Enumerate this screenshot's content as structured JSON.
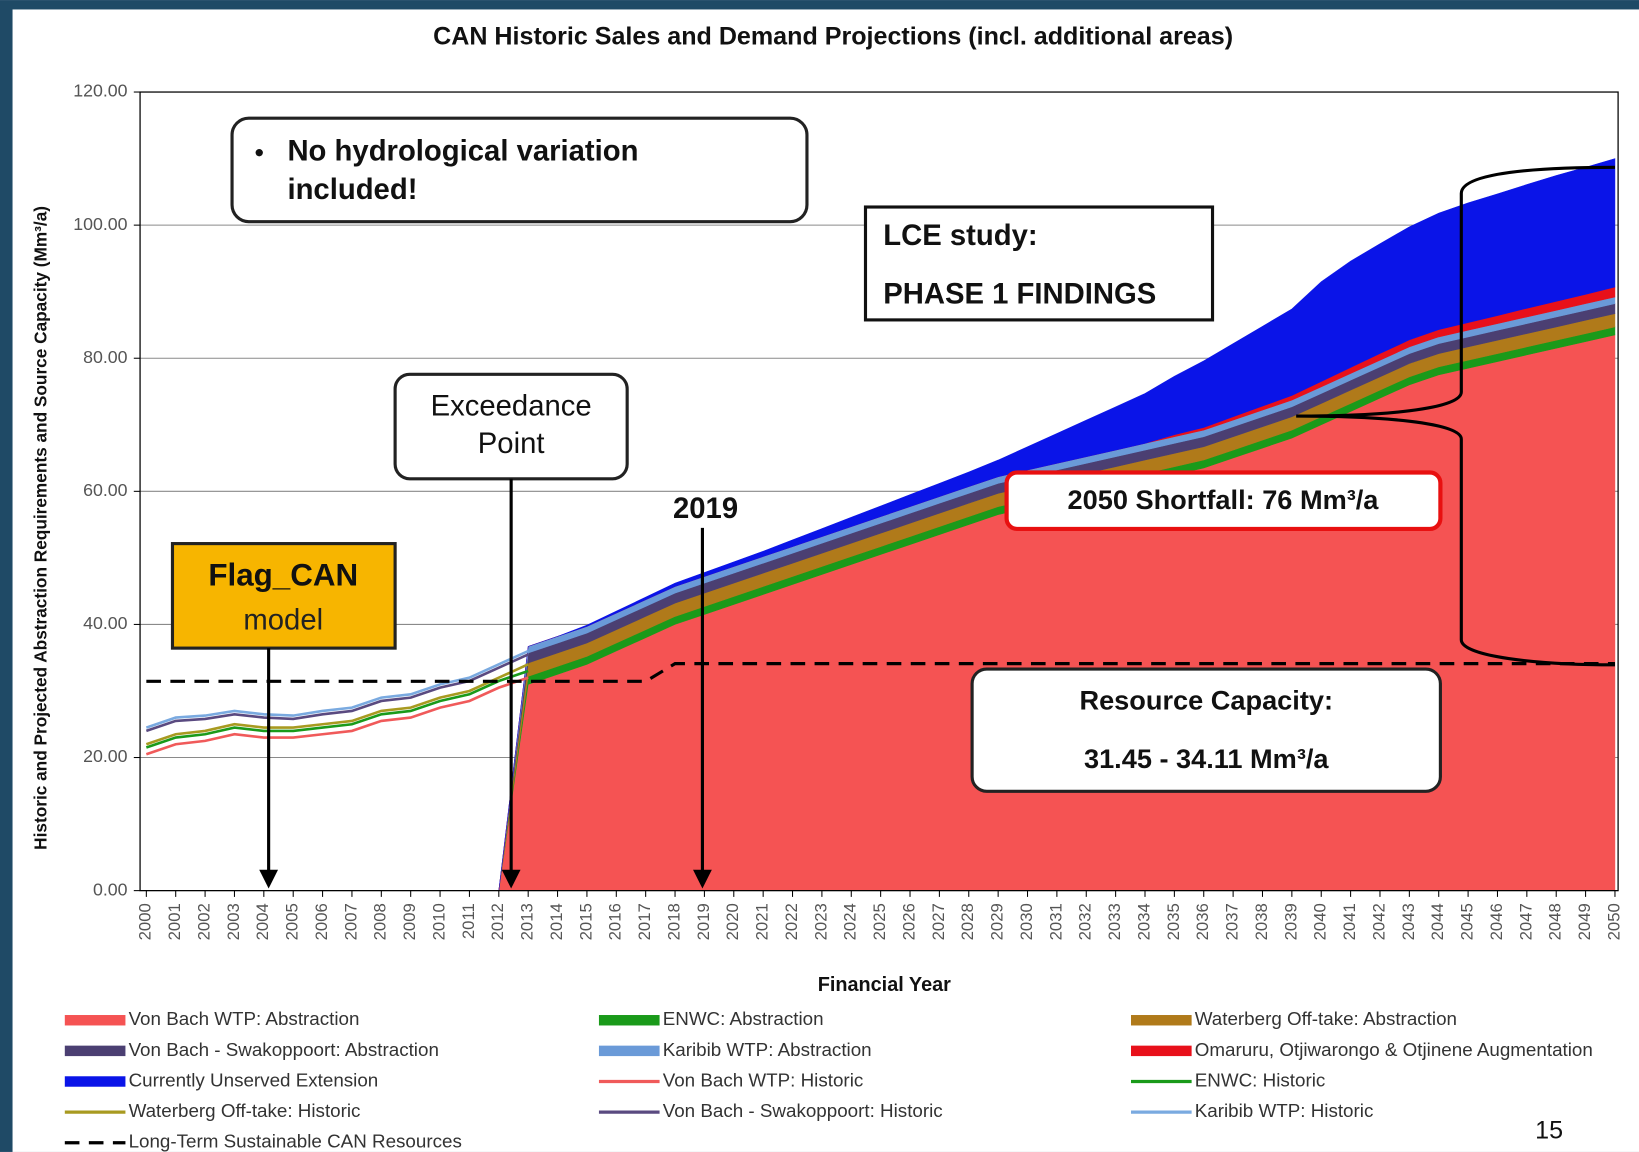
{
  "chart_data": {
    "type": "stacked_area",
    "title": "CAN Historic Sales and Demand Projections (incl. additional areas)",
    "x_label": "Financial Year",
    "y_label": "Historic and Projected Abstraction Requirements and Source Capacity (Mm³/a)",
    "x": [
      2000,
      2001,
      2002,
      2003,
      2004,
      2005,
      2006,
      2007,
      2008,
      2009,
      2010,
      2011,
      2012,
      2013,
      2014,
      2015,
      2016,
      2017,
      2018,
      2019,
      2020,
      2021,
      2022,
      2023,
      2024,
      2025,
      2026,
      2027,
      2028,
      2029,
      2030,
      2031,
      2032,
      2033,
      2034,
      2035,
      2036,
      2037,
      2038,
      2039,
      2040,
      2041,
      2042,
      2043,
      2044,
      2045,
      2046,
      2047,
      2048,
      2049,
      2050
    ],
    "xlim": [
      2000,
      2050
    ],
    "xticks": [
      2000,
      2001,
      2002,
      2003,
      2004,
      2005,
      2006,
      2007,
      2008,
      2009,
      2010,
      2011,
      2012,
      2013,
      2014,
      2015,
      2016,
      2017,
      2018,
      2019,
      2020,
      2021,
      2022,
      2023,
      2024,
      2025,
      2026,
      2027,
      2028,
      2029,
      2030,
      2031,
      2032,
      2033,
      2034,
      2035,
      2036,
      2037,
      2038,
      2039,
      2040,
      2041,
      2042,
      2043,
      2044,
      2045,
      2046,
      2047,
      2048,
      2049,
      2050
    ],
    "ylim": [
      0,
      120
    ],
    "yticks": [
      {
        "value": 0,
        "label": "0.00"
      },
      {
        "value": 20,
        "label": "20.00"
      },
      {
        "value": 40,
        "label": "40.00"
      },
      {
        "value": 60,
        "label": "60.00"
      },
      {
        "value": 80,
        "label": "80.00"
      },
      {
        "value": 100,
        "label": "100.00"
      },
      {
        "value": 120,
        "label": "120.00"
      }
    ],
    "grid": true,
    "series": [
      {
        "name": "Von Bach WTP: Abstraction",
        "kind": "area",
        "color": "#f55353",
        "values": [
          null,
          null,
          null,
          null,
          null,
          null,
          null,
          null,
          null,
          null,
          null,
          null,
          0,
          31,
          32.5,
          34,
          36,
          38,
          40,
          41.5,
          43,
          44.5,
          46,
          47.5,
          49,
          50.5,
          52,
          53.5,
          55,
          56.5,
          57.5,
          58.5,
          59.5,
          60.5,
          61.5,
          62.5,
          63.5,
          65,
          66.5,
          68,
          70,
          72,
          74,
          76,
          77.5,
          78.5,
          79.5,
          80.5,
          81.5,
          82.5,
          83.5
        ]
      },
      {
        "name": "ENWC: Abstraction",
        "kind": "area",
        "color": "#1a9a1a",
        "values": [
          null,
          null,
          null,
          null,
          null,
          null,
          null,
          null,
          null,
          null,
          null,
          null,
          0,
          1.2,
          1.2,
          1.2,
          1.2,
          1.2,
          1.2,
          1.2,
          1.2,
          1.2,
          1.2,
          1.2,
          1.2,
          1.2,
          1.2,
          1.2,
          1.2,
          1.2,
          1.2,
          1.2,
          1.2,
          1.2,
          1.2,
          1.2,
          1.2,
          1.2,
          1.2,
          1.2,
          1.2,
          1.2,
          1.2,
          1.2,
          1.2,
          1.2,
          1.2,
          1.2,
          1.2,
          1.2,
          1.2
        ]
      },
      {
        "name": "Waterberg Off-take: Abstraction",
        "kind": "area",
        "color": "#b07a1a",
        "values": [
          null,
          null,
          null,
          null,
          null,
          null,
          null,
          null,
          null,
          null,
          null,
          null,
          0,
          2,
          2,
          2,
          2,
          2,
          2,
          2,
          2,
          2,
          2,
          2,
          2,
          2,
          2,
          2,
          2,
          2,
          2,
          2,
          2,
          2,
          2,
          2,
          2,
          2,
          2,
          2,
          2,
          2,
          2,
          2,
          2,
          2,
          2,
          2,
          2,
          2,
          2
        ]
      },
      {
        "name": "Von Bach - Swakoppoort: Abstraction",
        "kind": "area",
        "color": "#4b3f72",
        "values": [
          null,
          null,
          null,
          null,
          null,
          null,
          null,
          null,
          null,
          null,
          null,
          null,
          0,
          1.5,
          1.5,
          1.5,
          1.5,
          1.5,
          1.5,
          1.5,
          1.5,
          1.5,
          1.5,
          1.5,
          1.5,
          1.5,
          1.5,
          1.5,
          1.5,
          1.5,
          1.5,
          1.5,
          1.5,
          1.5,
          1.5,
          1.5,
          1.5,
          1.5,
          1.5,
          1.5,
          1.5,
          1.5,
          1.5,
          1.5,
          1.5,
          1.5,
          1.5,
          1.5,
          1.5,
          1.5,
          1.5
        ]
      },
      {
        "name": "Karibib WTP: Abstraction",
        "kind": "area",
        "color": "#6a9ad8",
        "values": [
          null,
          null,
          null,
          null,
          null,
          null,
          null,
          null,
          null,
          null,
          null,
          null,
          0,
          1,
          1,
          1,
          1,
          1,
          1,
          1,
          1,
          1,
          1,
          1,
          1,
          1,
          1,
          1,
          1,
          1,
          1,
          1,
          1,
          1,
          1,
          1,
          1,
          1,
          1,
          1,
          1,
          1,
          1,
          1,
          1,
          1,
          1,
          1,
          1,
          1,
          1
        ]
      },
      {
        "name": "Omaruru, Otjiwarongo & Otjinene Augmentation",
        "kind": "area",
        "color": "#e8101a",
        "values": [
          null,
          null,
          null,
          null,
          null,
          null,
          null,
          null,
          null,
          null,
          null,
          null,
          0,
          0,
          0,
          0,
          0,
          0,
          0,
          0,
          0,
          0,
          0,
          0,
          0,
          0,
          0,
          0,
          0,
          0,
          0,
          0,
          0,
          0,
          0,
          0.3,
          0.4,
          0.5,
          0.6,
          0.7,
          0.8,
          0.9,
          1,
          1.05,
          1.1,
          1.15,
          1.2,
          1.3,
          1.35,
          1.4,
          1.5
        ]
      },
      {
        "name": "Currently Unserved Extension",
        "kind": "area",
        "color": "#0a14e8",
        "values": [
          null,
          null,
          null,
          null,
          null,
          null,
          null,
          null,
          null,
          null,
          null,
          null,
          0,
          0,
          0,
          0.2,
          0.3,
          0.4,
          0.5,
          0.6,
          0.7,
          0.8,
          1,
          1.2,
          1.4,
          1.6,
          1.8,
          2,
          2.2,
          2.5,
          3.5,
          4.5,
          5.5,
          6.5,
          7.5,
          8.8,
          10,
          11,
          12,
          13,
          15,
          16,
          16.5,
          17,
          17.5,
          18,
          18.3,
          18.6,
          18.9,
          19.1,
          19.3
        ]
      },
      {
        "name": "Von Bach WTP: Historic",
        "kind": "line",
        "color": "#f05a5a",
        "values": [
          20.5,
          22,
          22.5,
          23.5,
          23,
          23,
          23.5,
          24,
          25.5,
          26,
          27.5,
          28.5,
          30.5,
          32,
          null,
          null,
          null,
          null,
          null,
          null,
          null,
          null,
          null,
          null,
          null,
          null,
          null,
          null,
          null,
          null,
          null,
          null,
          null,
          null,
          null,
          null,
          null,
          null,
          null,
          null,
          null,
          null,
          null,
          null,
          null,
          null,
          null,
          null,
          null,
          null,
          null
        ]
      },
      {
        "name": "ENWC: Historic",
        "kind": "line",
        "color": "#1a9a1a",
        "values": [
          21.5,
          23,
          23.5,
          24.5,
          24,
          24,
          24.5,
          25,
          26.5,
          27,
          28.5,
          29.5,
          31.5,
          33,
          null,
          null,
          null,
          null,
          null,
          null,
          null,
          null,
          null,
          null,
          null,
          null,
          null,
          null,
          null,
          null,
          null,
          null,
          null,
          null,
          null,
          null,
          null,
          null,
          null,
          null,
          null,
          null,
          null,
          null,
          null,
          null,
          null,
          null,
          null,
          null,
          null
        ]
      },
      {
        "name": "Waterberg Off-take: Historic",
        "kind": "line",
        "color": "#a89a20",
        "values": [
          22,
          23.5,
          24,
          25,
          24.5,
          24.5,
          25,
          25.5,
          27,
          27.5,
          29,
          30,
          32,
          34,
          null,
          null,
          null,
          null,
          null,
          null,
          null,
          null,
          null,
          null,
          null,
          null,
          null,
          null,
          null,
          null,
          null,
          null,
          null,
          null,
          null,
          null,
          null,
          null,
          null,
          null,
          null,
          null,
          null,
          null,
          null,
          null,
          null,
          null,
          null,
          null,
          null
        ]
      },
      {
        "name": "Von Bach - Swakoppoort: Historic",
        "kind": "line",
        "color": "#5a4a80",
        "values": [
          24,
          25.5,
          25.8,
          26.5,
          26,
          25.8,
          26.5,
          27,
          28.5,
          29,
          30.5,
          31.5,
          33.5,
          35.5,
          null,
          null,
          null,
          null,
          null,
          null,
          null,
          null,
          null,
          null,
          null,
          null,
          null,
          null,
          null,
          null,
          null,
          null,
          null,
          null,
          null,
          null,
          null,
          null,
          null,
          null,
          null,
          null,
          null,
          null,
          null,
          null,
          null,
          null,
          null,
          null,
          null
        ]
      },
      {
        "name": "Karibib WTP: Historic",
        "kind": "line",
        "color": "#7aaae0",
        "values": [
          24.5,
          26,
          26.3,
          27,
          26.5,
          26.3,
          27,
          27.5,
          29,
          29.5,
          31,
          32,
          34,
          36,
          null,
          null,
          null,
          null,
          null,
          null,
          null,
          null,
          null,
          null,
          null,
          null,
          null,
          null,
          null,
          null,
          null,
          null,
          null,
          null,
          null,
          null,
          null,
          null,
          null,
          null,
          null,
          null,
          null,
          null,
          null,
          null,
          null,
          null,
          null,
          null,
          null
        ]
      },
      {
        "name": "Long-Term Sustainable CAN Resources",
        "kind": "line",
        "dashed": true,
        "color": "#000000",
        "values": [
          31.45,
          31.45,
          31.45,
          31.45,
          31.45,
          31.45,
          31.45,
          31.45,
          31.45,
          31.45,
          31.45,
          31.45,
          31.45,
          31.45,
          31.45,
          31.45,
          31.45,
          31.45,
          34.11,
          34.11,
          34.11,
          34.11,
          34.11,
          34.11,
          34.11,
          34.11,
          34.11,
          34.11,
          34.11,
          34.11,
          34.11,
          34.11,
          34.11,
          34.11,
          34.11,
          34.11,
          34.11,
          34.11,
          34.11,
          34.11,
          34.11,
          34.11,
          34.11,
          34.11,
          34.11,
          34.11,
          34.11,
          34.11,
          34.11,
          34.11,
          34.11
        ]
      }
    ],
    "annotations": [
      "No hydrological variation",
      "included!",
      "LCE study:",
      "PHASE 1 FINDINGS",
      "Exceedance",
      "Point",
      "2019",
      "Flag_CAN",
      "model",
      "2050 Shortfall: 76 Mm³/a",
      "Resource Capacity:",
      "31.45 - 34.11 Mm³/a"
    ]
  },
  "slide": {
    "page_number": "15"
  }
}
